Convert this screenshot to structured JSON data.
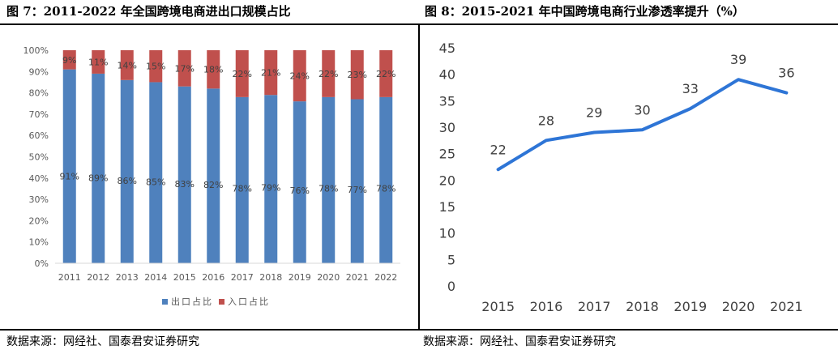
{
  "figures": [
    {
      "caption": "图 7：2011-2022 年全国跨境电商进出口规模占比",
      "source": "数据来源：网经社、国泰君安证券研究"
    },
    {
      "caption": "图 8：2015-2021 年中国跨境电商行业渗透率提升（%）",
      "source": "数据来源：网经社、国泰君安证券研究"
    }
  ],
  "chart_data": [
    {
      "type": "bar",
      "stacked": true,
      "percent": true,
      "categories": [
        "2011",
        "2012",
        "2013",
        "2014",
        "2015",
        "2016",
        "2017",
        "2018",
        "2019",
        "2020",
        "2021",
        "2022"
      ],
      "series": [
        {
          "name": "出口占比",
          "color": "#4f81bd",
          "values": [
            91,
            89,
            86,
            85,
            83,
            82,
            78,
            79,
            76,
            78,
            77,
            78
          ],
          "labels": [
            "91%",
            "89%",
            "86%",
            "85%",
            "83%",
            "82%",
            "78%",
            "79%",
            "76%",
            "78%",
            "77%",
            "78%"
          ]
        },
        {
          "name": "入口占比",
          "color": "#c0504d",
          "values": [
            9,
            11,
            14,
            15,
            17,
            18,
            22,
            21,
            24,
            22,
            23,
            22
          ],
          "labels": [
            "9%",
            "11%",
            "14%",
            "15%",
            "17%",
            "18%",
            "22%",
            "21%",
            "24%",
            "22%",
            "23%",
            "22%"
          ]
        }
      ],
      "ylim": [
        0,
        100
      ],
      "yticks": [
        "0%",
        "10%",
        "20%",
        "30%",
        "40%",
        "50%",
        "60%",
        "70%",
        "80%",
        "90%",
        "100%"
      ],
      "legend_position": "bottom",
      "grid": false
    },
    {
      "type": "line",
      "x": [
        "2015",
        "2016",
        "2017",
        "2018",
        "2019",
        "2020",
        "2021"
      ],
      "series": [
        {
          "color": "#2e75d6",
          "values": [
            22,
            27.5,
            29,
            29.5,
            33.5,
            39,
            36.5
          ],
          "labels": [
            "22",
            "28",
            "29",
            "30",
            "33",
            "39",
            "36"
          ]
        }
      ],
      "ylim": [
        0,
        45
      ],
      "yticks": [
        "0",
        "5",
        "10",
        "15",
        "20",
        "25",
        "30",
        "35",
        "40",
        "45"
      ],
      "grid": false
    }
  ]
}
